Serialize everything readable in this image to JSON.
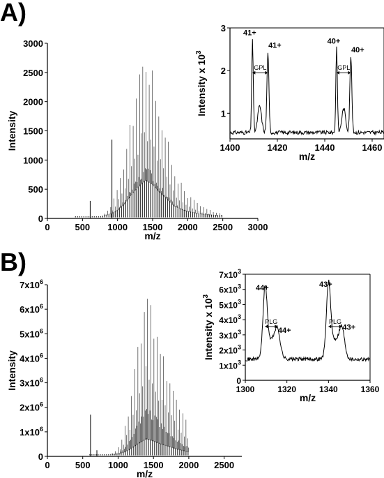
{
  "panels": [
    {
      "letter": "A)"
    },
    {
      "letter": "B)"
    }
  ],
  "chart_data": [
    {
      "id": "A-main",
      "type": "line",
      "xlabel": "m/z",
      "ylabel": "Intensity",
      "xlim": [
        0,
        3000
      ],
      "ylim": [
        0,
        3000
      ],
      "xticks": [
        0,
        500,
        1000,
        1500,
        2000,
        2500,
        3000
      ],
      "yticks": [
        0,
        500,
        1000,
        1500,
        2000,
        2500,
        3000
      ],
      "x_range_data": [
        400,
        2500
      ],
      "envelope_peaks": [
        {
          "x": 900,
          "y": 200
        },
        {
          "x": 1000,
          "y": 500
        },
        {
          "x": 1100,
          "y": 1000
        },
        {
          "x": 1200,
          "y": 1700
        },
        {
          "x": 1300,
          "y": 2350
        },
        {
          "x": 1400,
          "y": 2850
        },
        {
          "x": 1500,
          "y": 2500
        },
        {
          "x": 1600,
          "y": 1900
        },
        {
          "x": 1700,
          "y": 1400
        },
        {
          "x": 1800,
          "y": 850
        },
        {
          "x": 1900,
          "y": 600
        },
        {
          "x": 2000,
          "y": 400
        },
        {
          "x": 2200,
          "y": 200
        },
        {
          "x": 2400,
          "y": 100
        }
      ],
      "isolated_peaks": [
        {
          "x": 610,
          "y": 300
        },
        {
          "x": 920,
          "y": 1350
        }
      ]
    },
    {
      "id": "A-inset",
      "type": "line",
      "xlabel": "m/z",
      "ylabel": "Intensity x 10",
      "ylabel_exponent": "3",
      "xlim": [
        1400,
        1465
      ],
      "ylim": [
        0.4,
        3
      ],
      "xticks": [
        1400,
        1420,
        1440,
        1460
      ],
      "yticks": [
        1,
        2,
        3
      ],
      "peaks": [
        {
          "x": 1409.5,
          "y": 2.75,
          "label": "41+"
        },
        {
          "x": 1416,
          "y": 2.45,
          "label": "41+"
        },
        {
          "x": 1445,
          "y": 2.55,
          "label": "40+"
        },
        {
          "x": 1451,
          "y": 2.35,
          "label": "40+"
        }
      ],
      "separations": [
        {
          "x1": 1409.5,
          "x2": 1416,
          "y": 1.95,
          "label": "GPL"
        },
        {
          "x1": 1445,
          "x2": 1451,
          "y": 1.95,
          "label": "GPL"
        }
      ]
    },
    {
      "id": "B-main",
      "type": "line",
      "xlabel": "m/z",
      "ylabel": "Intensity",
      "xlim": [
        0,
        2750
      ],
      "ylim": [
        0,
        7000000
      ],
      "xticks": [
        "0",
        "500",
        "1000",
        "1500",
        "2000",
        "2500"
      ],
      "xtick_values": [
        0,
        500,
        1000,
        1500,
        2000,
        2500
      ],
      "yticks": [
        {
          "value": 0,
          "mantissa": "0",
          "exponent": ""
        },
        {
          "value": 1000000,
          "mantissa": "1x10",
          "exponent": "6"
        },
        {
          "value": 2000000,
          "mantissa": "2x10",
          "exponent": "6"
        },
        {
          "value": 3000000,
          "mantissa": "3x10",
          "exponent": "6"
        },
        {
          "value": 4000000,
          "mantissa": "4x10",
          "exponent": "6"
        },
        {
          "value": 5000000,
          "mantissa": "5x10",
          "exponent": "6"
        },
        {
          "value": 6000000,
          "mantissa": "6x10",
          "exponent": "6"
        },
        {
          "value": 7000000,
          "mantissa": "7x10",
          "exponent": "6"
        }
      ],
      "x_range_data": [
        600,
        2000
      ],
      "envelope_peaks": [
        {
          "x": 1000,
          "y": 300000
        },
        {
          "x": 1100,
          "y": 1200000
        },
        {
          "x": 1200,
          "y": 2800000
        },
        {
          "x": 1300,
          "y": 4800000
        },
        {
          "x": 1400,
          "y": 6500000
        },
        {
          "x": 1500,
          "y": 5600000
        },
        {
          "x": 1600,
          "y": 4400000
        },
        {
          "x": 1700,
          "y": 3500000
        },
        {
          "x": 1800,
          "y": 2600000
        },
        {
          "x": 1900,
          "y": 1800000
        },
        {
          "x": 2000,
          "y": 1200000
        }
      ],
      "isolated_peaks": [
        {
          "x": 610,
          "y": 1700000
        },
        {
          "x": 700,
          "y": 250000
        }
      ]
    },
    {
      "id": "B-inset",
      "type": "line",
      "xlabel": "m/z",
      "ylabel": "Intensity x 10",
      "ylabel_exponent": "3",
      "xlim": [
        1300,
        1360
      ],
      "ylim": [
        0,
        7000
      ],
      "xticks": [
        1300,
        1320,
        1340,
        1360
      ],
      "yticks": [
        {
          "value": 0,
          "mantissa": "0",
          "exponent": ""
        },
        {
          "value": 1000,
          "mantissa": "1x10",
          "exponent": "3"
        },
        {
          "value": 2000,
          "mantissa": "2x10",
          "exponent": "3"
        },
        {
          "value": 3000,
          "mantissa": "3x10",
          "exponent": "3"
        },
        {
          "value": 4000,
          "mantissa": "4x10",
          "exponent": "3"
        },
        {
          "value": 5000,
          "mantissa": "5x10",
          "exponent": "3"
        },
        {
          "value": 6000,
          "mantissa": "6x10",
          "exponent": "3"
        },
        {
          "value": 7000,
          "mantissa": "7x10",
          "exponent": "3"
        }
      ],
      "peaks": [
        {
          "x": 1309.5,
          "y": 5700,
          "label": "44+"
        },
        {
          "x": 1315.5,
          "y": 2900,
          "label": "44+"
        },
        {
          "x": 1340,
          "y": 5950,
          "label": "43+"
        },
        {
          "x": 1346.5,
          "y": 3100,
          "label": "43+"
        }
      ],
      "separations": [
        {
          "x1": 1309.5,
          "x2": 1315.5,
          "y": 3550,
          "label": "PLG"
        },
        {
          "x1": 1340,
          "x2": 1346.5,
          "y": 3550,
          "label": "PLG"
        }
      ]
    }
  ]
}
